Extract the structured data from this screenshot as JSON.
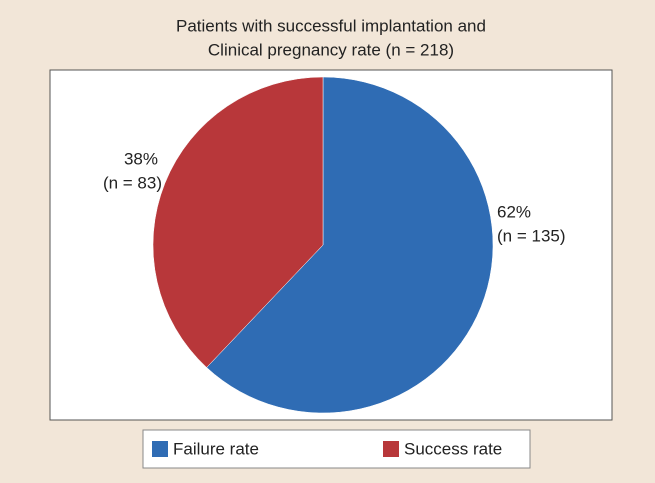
{
  "chart_data": {
    "type": "pie",
    "title": [
      "Patients with successful implantation and",
      "Clinical pregnancy rate (n = 218)"
    ],
    "categories": [
      "Failure rate",
      "Success rate"
    ],
    "values": [
      62,
      38
    ],
    "value_labels": [
      "62%",
      "38%"
    ],
    "count_labels": [
      "(n = 135)",
      "(n = 83)"
    ],
    "colors": [
      "#2f6cb4",
      "#b8373a"
    ],
    "legend": "bottom"
  }
}
